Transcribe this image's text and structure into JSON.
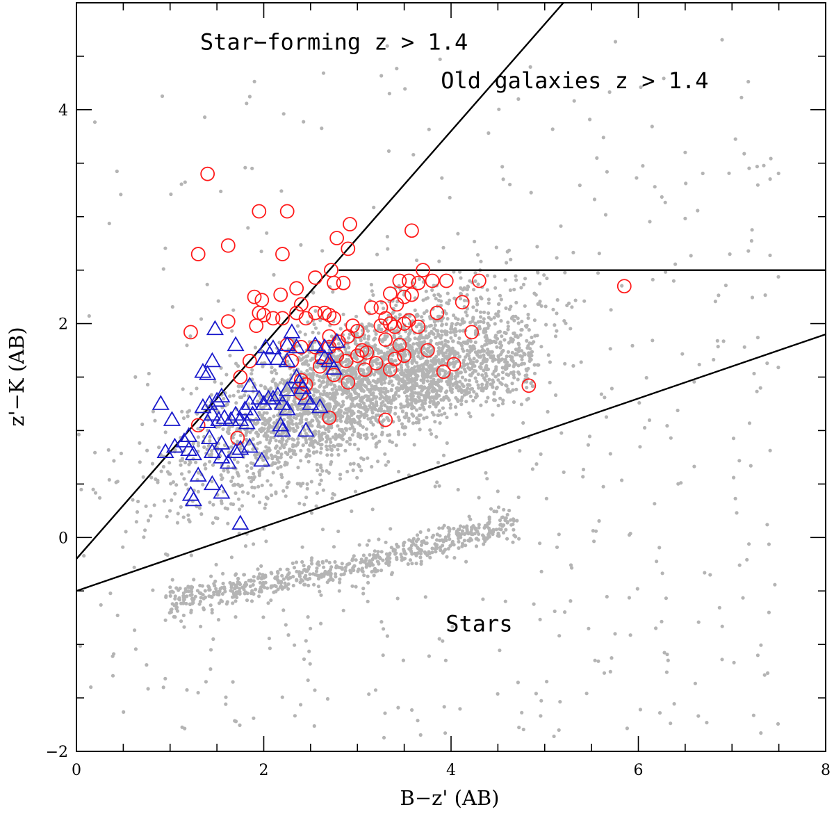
{
  "chart_data": {
    "type": "scatter",
    "xlabel": "B−z' (AB)",
    "ylabel": "z'−K (AB)",
    "xlim": [
      0,
      8
    ],
    "ylim": [
      -2,
      5
    ],
    "x_ticks": [
      0,
      2,
      4,
      6,
      8
    ],
    "y_ticks": [
      -2,
      0,
      2,
      4
    ],
    "x_tick_labels": [
      "0",
      "2",
      "4",
      "6",
      "8"
    ],
    "y_tick_labels": [
      "−2",
      "0",
      "2",
      "4"
    ],
    "grid": false,
    "annotations": [
      {
        "text": "Star−forming z > 1.4",
        "x": 2.75,
        "y": 4.56
      },
      {
        "text": "Old galaxies z > 1.4",
        "x": 6.75,
        "y": 4.2
      },
      {
        "text": "Stars",
        "x": 4.3,
        "y": -0.88
      }
    ],
    "lines": [
      {
        "name": "star-forming-boundary",
        "x": [
          0,
          5.2
        ],
        "y": [
          -0.2,
          5.0
        ]
      },
      {
        "name": "old-galaxies-boundary",
        "x": [
          2.8,
          8.0
        ],
        "y": [
          2.5,
          2.5
        ]
      },
      {
        "name": "stars-boundary",
        "x": [
          0,
          8.0
        ],
        "y": [
          -0.5,
          1.9
        ]
      }
    ],
    "colors": {
      "background_points": "#b4b4b4",
      "circles": "#ff1a1a",
      "triangles": "#1a1acc",
      "lines": "#000000"
    },
    "series": [
      {
        "marker": "circle",
        "color": "#ff1a1a",
        "points": [
          [
            1.4,
            3.4
          ],
          [
            1.95,
            3.05
          ],
          [
            2.25,
            3.05
          ],
          [
            1.3,
            2.65
          ],
          [
            1.62,
            2.73
          ],
          [
            2.2,
            2.65
          ],
          [
            2.92,
            2.93
          ],
          [
            2.78,
            2.8
          ],
          [
            2.9,
            2.7
          ],
          [
            3.58,
            2.87
          ],
          [
            2.72,
            2.5
          ],
          [
            2.55,
            2.43
          ],
          [
            3.7,
            2.5
          ],
          [
            3.55,
            2.4
          ],
          [
            3.45,
            2.4
          ],
          [
            3.8,
            2.4
          ],
          [
            3.95,
            2.4
          ],
          [
            4.3,
            2.4
          ],
          [
            5.85,
            2.35
          ],
          [
            2.75,
            2.38
          ],
          [
            2.85,
            2.38
          ],
          [
            2.35,
            2.33
          ],
          [
            2.18,
            2.27
          ],
          [
            1.9,
            2.25
          ],
          [
            1.98,
            2.22
          ],
          [
            2.4,
            2.18
          ],
          [
            3.35,
            2.28
          ],
          [
            3.5,
            2.25
          ],
          [
            3.42,
            2.18
          ],
          [
            4.12,
            2.2
          ],
          [
            3.58,
            2.27
          ],
          [
            3.65,
            2.38
          ],
          [
            3.85,
            2.1
          ],
          [
            3.25,
            2.15
          ],
          [
            3.15,
            2.15
          ],
          [
            2.35,
            2.1
          ],
          [
            2.55,
            2.1
          ],
          [
            2.65,
            2.1
          ],
          [
            2.7,
            2.08
          ],
          [
            1.95,
            2.1
          ],
          [
            2.0,
            2.08
          ],
          [
            2.1,
            2.05
          ],
          [
            2.2,
            2.05
          ],
          [
            1.92,
            1.98
          ],
          [
            1.62,
            2.02
          ],
          [
            1.22,
            1.92
          ],
          [
            2.45,
            2.05
          ],
          [
            2.75,
            2.05
          ],
          [
            2.95,
            1.98
          ],
          [
            3.0,
            1.93
          ],
          [
            3.3,
            2.05
          ],
          [
            3.35,
            2.0
          ],
          [
            3.4,
            1.97
          ],
          [
            3.5,
            2.0
          ],
          [
            3.55,
            2.03
          ],
          [
            3.65,
            1.97
          ],
          [
            3.25,
            1.98
          ],
          [
            4.22,
            1.92
          ],
          [
            2.7,
            1.88
          ],
          [
            2.8,
            1.83
          ],
          [
            2.9,
            1.88
          ],
          [
            2.55,
            1.78
          ],
          [
            2.7,
            1.78
          ],
          [
            3.05,
            1.75
          ],
          [
            3.0,
            1.7
          ],
          [
            3.1,
            1.73
          ],
          [
            3.3,
            1.85
          ],
          [
            3.45,
            1.8
          ],
          [
            2.25,
            1.8
          ],
          [
            2.4,
            1.78
          ],
          [
            2.62,
            1.68
          ],
          [
            2.78,
            1.7
          ],
          [
            2.88,
            1.65
          ],
          [
            3.2,
            1.63
          ],
          [
            3.4,
            1.67
          ],
          [
            3.5,
            1.7
          ],
          [
            3.75,
            1.75
          ],
          [
            2.6,
            1.6
          ],
          [
            2.3,
            1.65
          ],
          [
            1.85,
            1.65
          ],
          [
            3.08,
            1.57
          ],
          [
            3.35,
            1.57
          ],
          [
            3.92,
            1.55
          ],
          [
            4.03,
            1.62
          ],
          [
            2.75,
            1.52
          ],
          [
            2.9,
            1.45
          ],
          [
            2.4,
            1.47
          ],
          [
            2.45,
            1.43
          ],
          [
            1.75,
            1.5
          ],
          [
            4.83,
            1.42
          ],
          [
            2.4,
            1.35
          ],
          [
            2.7,
            1.12
          ],
          [
            3.3,
            1.1
          ],
          [
            1.3,
            1.05
          ],
          [
            1.72,
            0.93
          ]
        ]
      },
      {
        "marker": "triangle",
        "color": "#1a1acc",
        "points": [
          [
            1.48,
            1.95
          ],
          [
            2.3,
            1.92
          ],
          [
            1.7,
            1.8
          ],
          [
            2.02,
            1.78
          ],
          [
            2.1,
            1.77
          ],
          [
            2.25,
            1.8
          ],
          [
            2.35,
            1.78
          ],
          [
            2.55,
            1.8
          ],
          [
            2.65,
            1.78
          ],
          [
            2.78,
            1.83
          ],
          [
            1.45,
            1.65
          ],
          [
            1.4,
            1.53
          ],
          [
            1.35,
            1.55
          ],
          [
            2.0,
            1.67
          ],
          [
            2.15,
            1.67
          ],
          [
            2.25,
            1.65
          ],
          [
            2.65,
            1.68
          ],
          [
            2.7,
            1.65
          ],
          [
            2.75,
            1.58
          ],
          [
            2.35,
            1.5
          ],
          [
            2.38,
            1.45
          ],
          [
            2.42,
            1.4
          ],
          [
            2.25,
            1.38
          ],
          [
            2.15,
            1.33
          ],
          [
            2.05,
            1.3
          ],
          [
            1.85,
            1.42
          ],
          [
            1.55,
            1.32
          ],
          [
            1.5,
            1.28
          ],
          [
            1.42,
            1.25
          ],
          [
            1.35,
            1.22
          ],
          [
            2.45,
            1.3
          ],
          [
            2.5,
            1.25
          ],
          [
            2.6,
            1.22
          ],
          [
            1.95,
            1.3
          ],
          [
            1.85,
            1.25
          ],
          [
            2.0,
            1.25
          ],
          [
            1.8,
            1.2
          ],
          [
            1.7,
            1.15
          ],
          [
            1.75,
            1.1
          ],
          [
            1.65,
            1.1
          ],
          [
            1.58,
            1.12
          ],
          [
            1.52,
            1.1
          ],
          [
            1.45,
            1.15
          ],
          [
            1.4,
            1.08
          ],
          [
            0.9,
            1.25
          ],
          [
            1.02,
            1.1
          ],
          [
            2.1,
            1.3
          ],
          [
            2.2,
            1.25
          ],
          [
            2.25,
            1.2
          ],
          [
            1.88,
            1.15
          ],
          [
            1.82,
            1.07
          ],
          [
            2.18,
            1.05
          ],
          [
            2.2,
            1.0
          ],
          [
            2.45,
            1.0
          ],
          [
            1.2,
            0.95
          ],
          [
            1.42,
            0.93
          ],
          [
            1.55,
            0.88
          ],
          [
            1.15,
            0.9
          ],
          [
            1.05,
            0.85
          ],
          [
            0.95,
            0.8
          ],
          [
            1.2,
            0.82
          ],
          [
            1.25,
            0.78
          ],
          [
            1.45,
            0.8
          ],
          [
            1.55,
            0.75
          ],
          [
            1.62,
            0.7
          ],
          [
            1.75,
            0.83
          ],
          [
            1.85,
            0.85
          ],
          [
            1.7,
            0.8
          ],
          [
            1.98,
            0.72
          ],
          [
            1.3,
            0.58
          ],
          [
            1.45,
            0.5
          ],
          [
            1.55,
            0.42
          ],
          [
            1.25,
            0.35
          ],
          [
            1.22,
            0.4
          ],
          [
            1.75,
            0.13
          ]
        ]
      }
    ]
  }
}
